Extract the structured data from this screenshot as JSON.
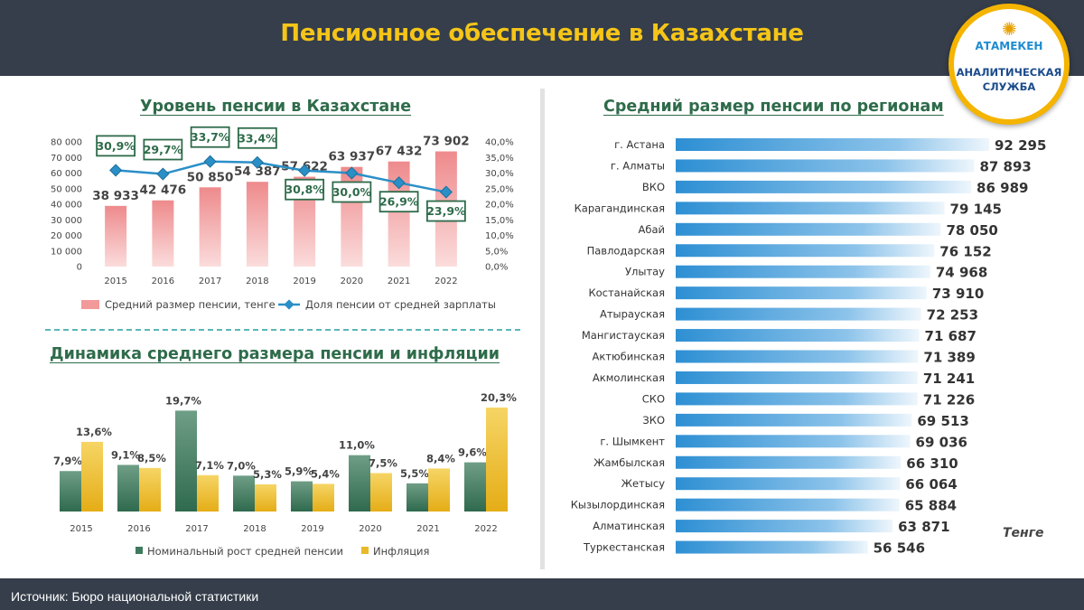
{
  "header": {
    "title": "Пенсионное обеспечение в Казахстане"
  },
  "logo": {
    "brand": "АТАМЕКЕН",
    "service_line1": "АНАЛИТИЧЕСКАЯ",
    "service_line2": "СЛУЖБА"
  },
  "footer": {
    "source": "Источник: Бюро национальной  статистики"
  },
  "chart_data": [
    {
      "type": "bar",
      "title": "Уровень пенсии в Казахстане",
      "categories": [
        "2015",
        "2016",
        "2017",
        "2018",
        "2019",
        "2020",
        "2021",
        "2022"
      ],
      "ylim": [
        0,
        80000
      ],
      "y_ticks": [
        "80 000",
        "70 000",
        "60 000",
        "50 000",
        "40 000",
        "30 000",
        "20 000",
        "10 000",
        "0"
      ],
      "y2lim": [
        0,
        40
      ],
      "y2_ticks": [
        "40,0%",
        "35,0%",
        "30,0%",
        "25,0%",
        "20,0%",
        "15,0%",
        "10,0%",
        "5,0%",
        "0,0%"
      ],
      "series": [
        {
          "name": "Средний размер пенсии, тенге",
          "type": "bar",
          "color": "#f2999a",
          "values": [
            38933,
            42476,
            50850,
            54387,
            57622,
            63937,
            67432,
            73902
          ],
          "labels": [
            "38 933",
            "42 476",
            "50 850",
            "54 387",
            "57 622",
            "63 937",
            "67 432",
            "73 902"
          ]
        },
        {
          "name": "Доля пенсии от средней зарплаты",
          "type": "line",
          "axis": "right",
          "color": "#2a8fc7",
          "values": [
            30.9,
            29.7,
            33.7,
            33.4,
            30.8,
            30.0,
            26.9,
            23.9
          ],
          "labels": [
            "30,9%",
            "29,7%",
            "33,7%",
            "33,4%",
            "30,8%",
            "30,0%",
            "26,9%",
            "23,9%"
          ]
        }
      ],
      "grid": false,
      "legend": "bottom"
    },
    {
      "type": "bar",
      "title": "Динамика среднего размера пенсии и инфляции",
      "categories": [
        "2015",
        "2016",
        "2017",
        "2018",
        "2019",
        "2020",
        "2021",
        "2022"
      ],
      "ylim": [
        0,
        21
      ],
      "series": [
        {
          "name": "Номинальный рост средней пенсии",
          "color": "#3f7a5e",
          "values": [
            7.9,
            9.1,
            19.7,
            7.0,
            5.9,
            11.0,
            5.5,
            9.6
          ],
          "labels": [
            "7,9%",
            "9,1%",
            "19,7%",
            "7,0%",
            "5,9%",
            "11,0%",
            "5,5%",
            "9,6%"
          ]
        },
        {
          "name": "Инфляция",
          "color": "#e9b92a",
          "values": [
            13.6,
            8.5,
            7.1,
            5.3,
            5.4,
            7.5,
            8.4,
            20.3
          ],
          "labels": [
            "13,6%",
            "8,5%",
            "7,1%",
            "5,3%",
            "5,4%",
            "7,5%",
            "8,4%",
            "20,3%"
          ]
        }
      ],
      "grid": false,
      "legend": "bottom"
    },
    {
      "type": "bar",
      "orientation": "horizontal",
      "title": "Средний размер пенсии по регионам",
      "unit": "Тенге",
      "categories": [
        "г. Астана",
        "г. Алматы",
        "ВКО",
        "Карагандинская",
        "Абай",
        "Павлодарская",
        "Улытау",
        "Костанайская",
        "Атырауская",
        "Мангистауская",
        "Актюбинская",
        "Акмолинская",
        "СКО",
        "ЗКО",
        "г. Шымкент",
        "Жамбылская",
        "Жетысу",
        "Кызылординская",
        "Алматинская",
        "Туркестанская"
      ],
      "values": [
        92295,
        87893,
        86989,
        79145,
        78050,
        76152,
        74968,
        73910,
        72253,
        71687,
        71389,
        71241,
        71226,
        69513,
        69036,
        66310,
        66064,
        65884,
        63871,
        56546
      ],
      "labels": [
        "92 295",
        "87 893",
        "86 989",
        "79 145",
        "78 050",
        "76 152",
        "74 968",
        "73 910",
        "72 253",
        "71 687",
        "71 389",
        "71 241",
        "71 226",
        "69 513",
        "69 036",
        "66 310",
        "66 064",
        "65 884",
        "63 871",
        "56 546"
      ],
      "color": "#2d8fd3",
      "grid": false
    }
  ]
}
